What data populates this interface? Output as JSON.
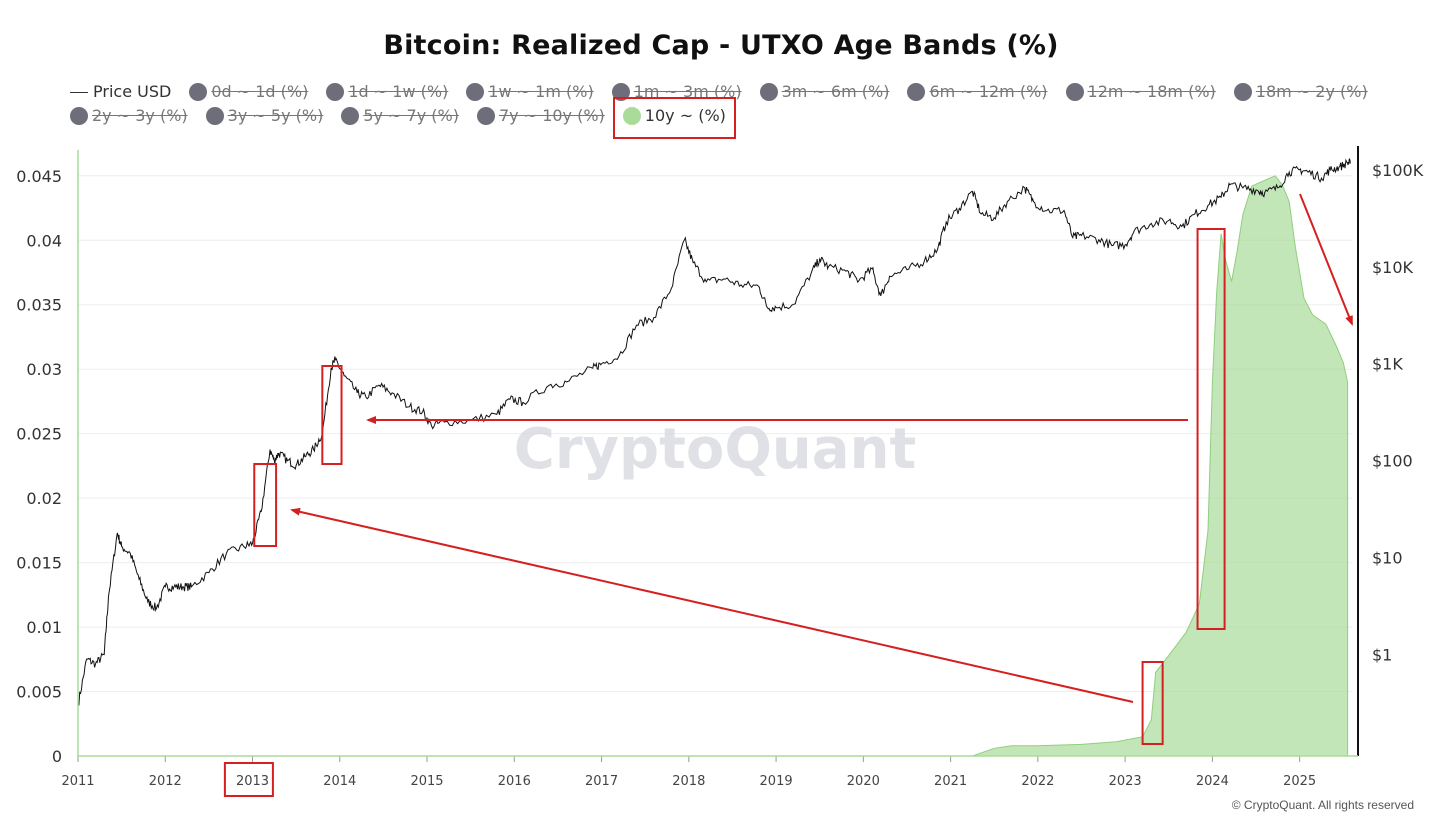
{
  "chart_data": {
    "type": "area",
    "title": "Bitcoin: Realized Cap - UTXO Age Bands (%)",
    "watermark": "CryptoQuant",
    "copyright": "© CryptoQuant. All rights reserved",
    "legend": [
      {
        "label": "Price USD",
        "marker": "line",
        "enabled": true
      },
      {
        "label": "0d ~ 1d (%)",
        "marker": "dot",
        "enabled": false
      },
      {
        "label": "1d ~ 1w (%)",
        "marker": "dot",
        "enabled": false
      },
      {
        "label": "1w ~ 1m (%)",
        "marker": "dot",
        "enabled": false
      },
      {
        "label": "1m ~ 3m (%)",
        "marker": "dot",
        "enabled": false
      },
      {
        "label": "3m ~ 6m (%)",
        "marker": "dot",
        "enabled": false
      },
      {
        "label": "6m ~ 12m (%)",
        "marker": "dot",
        "enabled": false
      },
      {
        "label": "12m ~ 18m (%)",
        "marker": "dot",
        "enabled": false
      },
      {
        "label": "18m ~ 2y (%)",
        "marker": "dot",
        "enabled": false
      },
      {
        "label": "2y ~ 3y (%)",
        "marker": "dot",
        "enabled": false
      },
      {
        "label": "3y ~ 5y (%)",
        "marker": "dot",
        "enabled": false
      },
      {
        "label": "5y ~ 7y (%)",
        "marker": "dot",
        "enabled": false
      },
      {
        "label": "7y ~ 10y (%)",
        "marker": "dot",
        "enabled": false
      },
      {
        "label": "10y ~ (%)",
        "marker": "dot",
        "enabled": true,
        "highlighted": true
      }
    ],
    "x_axis": {
      "ticks": [
        "2011",
        "2012",
        "2013",
        "2014",
        "2015",
        "2016",
        "2017",
        "2018",
        "2019",
        "2020",
        "2021",
        "2022",
        "2023",
        "2024",
        "2025"
      ],
      "range": [
        2011.0,
        2025.6
      ],
      "highlighted_tick": "2013"
    },
    "y_left": {
      "ticks": [
        "0",
        "0.005",
        "0.01",
        "0.015",
        "0.02",
        "0.025",
        "0.03",
        "0.035",
        "0.04",
        "0.045"
      ],
      "range": [
        0,
        0.047
      ]
    },
    "y_right": {
      "ticks": [
        "$1",
        "$10",
        "$100",
        "$1K",
        "$10K",
        "$100K"
      ],
      "scale": "log",
      "range": [
        0.09,
        160000
      ]
    },
    "series": [
      {
        "name": "10y ~ (%)",
        "axis": "left",
        "color": "#a8dc98",
        "points": [
          [
            2011.0,
            0
          ],
          [
            2021.25,
            0
          ],
          [
            2021.5,
            0.0006
          ],
          [
            2021.7,
            0.0008
          ],
          [
            2022.0,
            0.0008
          ],
          [
            2022.5,
            0.0009
          ],
          [
            2022.9,
            0.0011
          ],
          [
            2023.2,
            0.0015
          ],
          [
            2023.3,
            0.0028
          ],
          [
            2023.35,
            0.0065
          ],
          [
            2023.5,
            0.0078
          ],
          [
            2023.7,
            0.0096
          ],
          [
            2023.85,
            0.0118
          ],
          [
            2023.95,
            0.0175
          ],
          [
            2024.0,
            0.029
          ],
          [
            2024.05,
            0.036
          ],
          [
            2024.1,
            0.0405
          ],
          [
            2024.15,
            0.0385
          ],
          [
            2024.22,
            0.0368
          ],
          [
            2024.28,
            0.039
          ],
          [
            2024.35,
            0.042
          ],
          [
            2024.45,
            0.0442
          ],
          [
            2024.55,
            0.0445
          ],
          [
            2024.65,
            0.0448
          ],
          [
            2024.72,
            0.045
          ],
          [
            2024.8,
            0.0443
          ],
          [
            2024.88,
            0.043
          ],
          [
            2024.95,
            0.0395
          ],
          [
            2025.05,
            0.0355
          ],
          [
            2025.15,
            0.0342
          ],
          [
            2025.3,
            0.0335
          ],
          [
            2025.42,
            0.0318
          ],
          [
            2025.5,
            0.0305
          ],
          [
            2025.55,
            0.029
          ]
        ]
      },
      {
        "name": "Price USD",
        "axis": "right",
        "color": "#111111",
        "points": [
          [
            2011.0,
            0.3
          ],
          [
            2011.1,
            0.9
          ],
          [
            2011.2,
            0.8
          ],
          [
            2011.3,
            1.0
          ],
          [
            2011.35,
            4
          ],
          [
            2011.45,
            18
          ],
          [
            2011.5,
            13
          ],
          [
            2011.6,
            11
          ],
          [
            2011.7,
            6
          ],
          [
            2011.8,
            3.5
          ],
          [
            2011.9,
            3
          ],
          [
            2012.0,
            5
          ],
          [
            2012.1,
            5
          ],
          [
            2012.2,
            5
          ],
          [
            2012.3,
            5
          ],
          [
            2012.5,
            7
          ],
          [
            2012.7,
            11
          ],
          [
            2012.9,
            13
          ],
          [
            2013.0,
            14
          ],
          [
            2013.1,
            30
          ],
          [
            2013.2,
            130
          ],
          [
            2013.25,
            100
          ],
          [
            2013.3,
            120
          ],
          [
            2013.4,
            100
          ],
          [
            2013.5,
            90
          ],
          [
            2013.6,
            110
          ],
          [
            2013.7,
            130
          ],
          [
            2013.8,
            190
          ],
          [
            2013.9,
            900
          ],
          [
            2013.95,
            1100
          ],
          [
            2014.05,
            750
          ],
          [
            2014.2,
            500
          ],
          [
            2014.3,
            450
          ],
          [
            2014.45,
            600
          ],
          [
            2014.6,
            500
          ],
          [
            2014.8,
            360
          ],
          [
            2014.95,
            320
          ],
          [
            2015.05,
            230
          ],
          [
            2015.2,
            250
          ],
          [
            2015.5,
            260
          ],
          [
            2015.8,
            300
          ],
          [
            2015.95,
            430
          ],
          [
            2016.1,
            400
          ],
          [
            2016.4,
            600
          ],
          [
            2016.6,
            650
          ],
          [
            2016.9,
            900
          ],
          [
            2017.0,
            1000
          ],
          [
            2017.2,
            1200
          ],
          [
            2017.4,
            2500
          ],
          [
            2017.6,
            3000
          ],
          [
            2017.8,
            6000
          ],
          [
            2017.95,
            19000
          ],
          [
            2018.05,
            11000
          ],
          [
            2018.2,
            7000
          ],
          [
            2018.4,
            7500
          ],
          [
            2018.6,
            6500
          ],
          [
            2018.8,
            6300
          ],
          [
            2018.9,
            3800
          ],
          [
            2019.0,
            3800
          ],
          [
            2019.2,
            4100
          ],
          [
            2019.4,
            8500
          ],
          [
            2019.5,
            12000
          ],
          [
            2019.6,
            10000
          ],
          [
            2019.8,
            9000
          ],
          [
            2019.95,
            7200
          ],
          [
            2020.1,
            9500
          ],
          [
            2020.2,
            5000
          ],
          [
            2020.3,
            8000
          ],
          [
            2020.5,
            9300
          ],
          [
            2020.7,
            11500
          ],
          [
            2020.85,
            15000
          ],
          [
            2020.95,
            29000
          ],
          [
            2021.1,
            40000
          ],
          [
            2021.25,
            60000
          ],
          [
            2021.35,
            35000
          ],
          [
            2021.5,
            32000
          ],
          [
            2021.65,
            47000
          ],
          [
            2021.85,
            65000
          ],
          [
            2021.95,
            47000
          ],
          [
            2022.1,
            38000
          ],
          [
            2022.3,
            38000
          ],
          [
            2022.4,
            20000
          ],
          [
            2022.5,
            21000
          ],
          [
            2022.7,
            19000
          ],
          [
            2022.85,
            16500
          ],
          [
            2023.0,
            16800
          ],
          [
            2023.1,
            23000
          ],
          [
            2023.3,
            28000
          ],
          [
            2023.5,
            30000
          ],
          [
            2023.65,
            26000
          ],
          [
            2023.8,
            35000
          ],
          [
            2023.95,
            43000
          ],
          [
            2024.1,
            52000
          ],
          [
            2024.2,
            70000
          ],
          [
            2024.35,
            65000
          ],
          [
            2024.5,
            62000
          ],
          [
            2024.6,
            58000
          ],
          [
            2024.75,
            65000
          ],
          [
            2024.88,
            95000
          ],
          [
            2025.0,
            100000
          ],
          [
            2025.1,
            95000
          ],
          [
            2025.25,
            82000
          ],
          [
            2025.35,
            100000
          ],
          [
            2025.45,
            106000
          ],
          [
            2025.55,
            118000
          ],
          [
            2025.58,
            116000
          ]
        ]
      }
    ],
    "annotations": [
      {
        "type": "box",
        "target": "legend 10y ~ (%)"
      },
      {
        "type": "box",
        "target": "x tick 2013"
      },
      {
        "type": "box",
        "target": "price early 2013"
      },
      {
        "type": "box",
        "target": "price late 2013 peak"
      },
      {
        "type": "box",
        "target": "10y band 2023 rise"
      },
      {
        "type": "box",
        "target": "10y band late 2023 surge"
      },
      {
        "type": "arrow",
        "from": "10y band 2023 rise",
        "to": "price early 2013"
      },
      {
        "type": "arrow",
        "from": "10y band late 2023 surge",
        "to": "price late 2013 peak"
      },
      {
        "type": "arrow",
        "from": "10y band 2025 decline",
        "direction": "down-right"
      }
    ]
  }
}
